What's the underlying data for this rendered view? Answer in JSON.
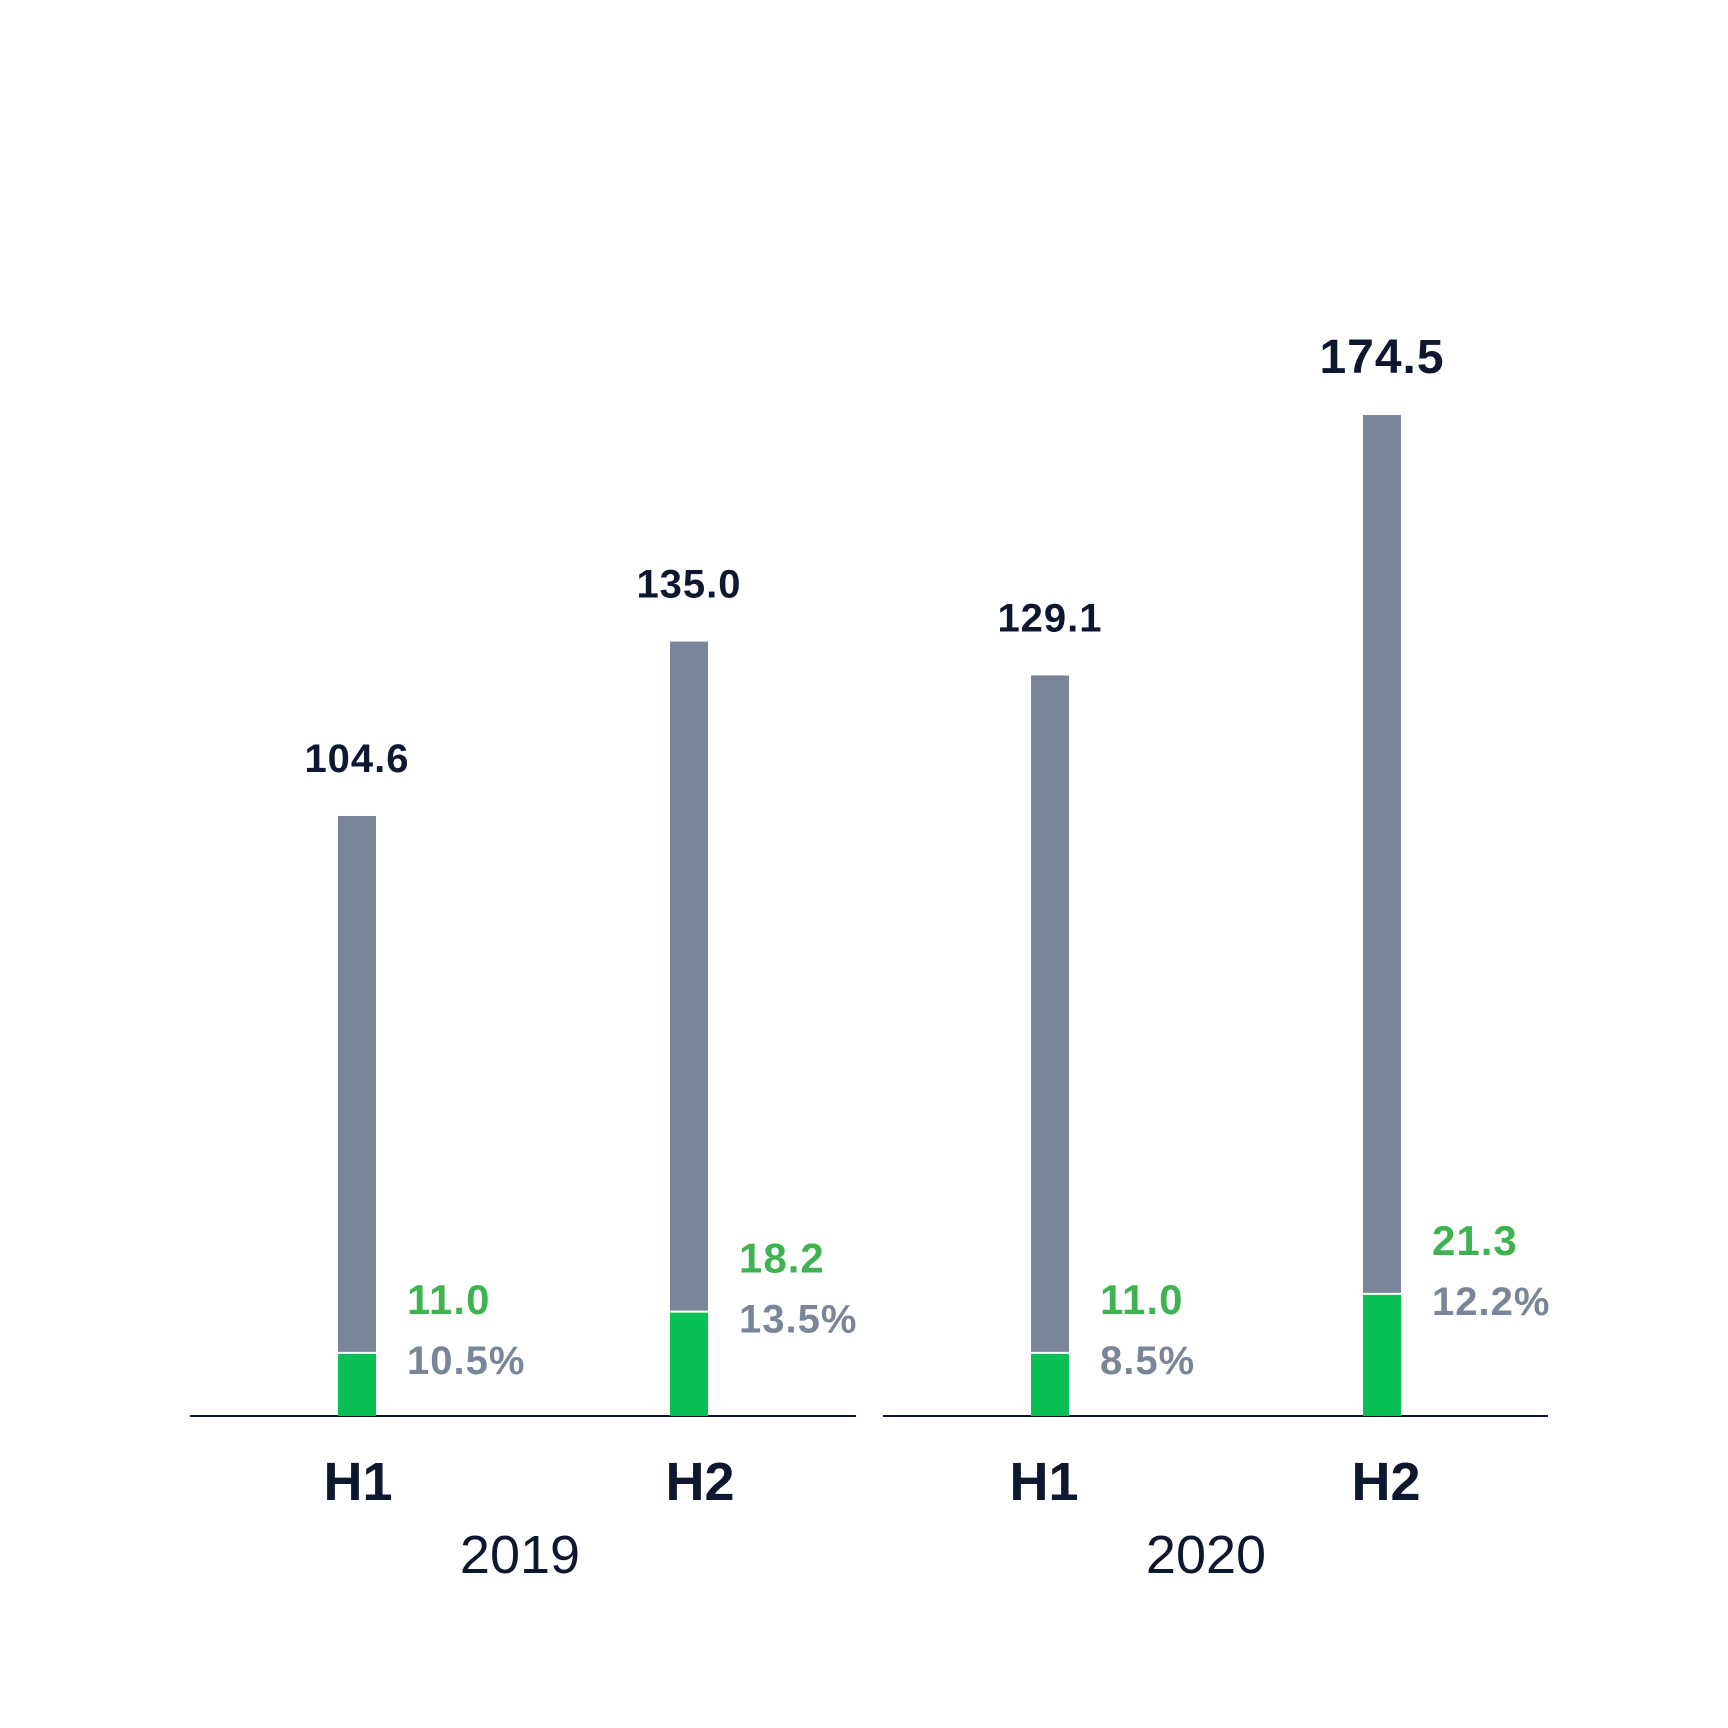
{
  "chart_data": {
    "type": "bar",
    "groups": [
      {
        "year": "2019",
        "items": [
          {
            "half": "H1",
            "total": 104.6,
            "total_label": "104.6",
            "part": 11.0,
            "part_label": "11.0",
            "pct_label": "10.5%"
          },
          {
            "half": "H2",
            "total": 135.0,
            "total_label": "135.0",
            "part": 18.2,
            "part_label": "18.2",
            "pct_label": "13.5%"
          }
        ]
      },
      {
        "year": "2020",
        "items": [
          {
            "half": "H1",
            "total": 129.1,
            "total_label": "129.1",
            "part": 11.0,
            "part_label": "11.0",
            "pct_label": "8.5%"
          },
          {
            "half": "H2",
            "total": 174.5,
            "total_label": "174.5",
            "part": 21.3,
            "part_label": "21.3",
            "pct_label": "12.2%",
            "highlight": true
          }
        ]
      }
    ],
    "ylim": [
      0,
      174.5
    ],
    "grid": false,
    "legend": "none",
    "colors": {
      "total": "#798699",
      "part": "#0abf53",
      "part_label": "#3fb34f",
      "pct_label": "#798699",
      "text": "#0d1730",
      "axis": "#0d1730"
    }
  }
}
